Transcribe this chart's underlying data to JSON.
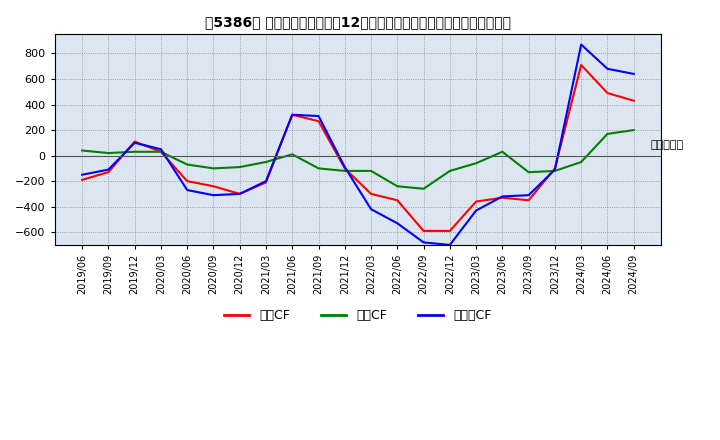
{
  "title": "々5386〆 キャッシュフローの12か月移動合計の対前年同期増減額の推移",
  "ylabel": "（百万円）",
  "ylim": [
    -700,
    950
  ],
  "yticks": [
    -600,
    -400,
    -200,
    0,
    200,
    400,
    600,
    800
  ],
  "dates": [
    "2019/06",
    "2019/09",
    "2019/12",
    "2020/03",
    "2020/06",
    "2020/09",
    "2020/12",
    "2021/03",
    "2021/06",
    "2021/09",
    "2021/12",
    "2022/03",
    "2022/06",
    "2022/09",
    "2022/12",
    "2023/03",
    "2023/06",
    "2023/09",
    "2023/12",
    "2024/03",
    "2024/06",
    "2024/09"
  ],
  "operating_cf": [
    -190,
    -130,
    110,
    30,
    -200,
    -240,
    -300,
    -210,
    320,
    270,
    -100,
    -300,
    -350,
    -590,
    -590,
    -360,
    -330,
    -350,
    -100,
    710,
    490,
    430
  ],
  "investing_cf": [
    40,
    20,
    30,
    30,
    -70,
    -100,
    -90,
    -50,
    10,
    -100,
    -120,
    -120,
    -240,
    -260,
    -120,
    -60,
    30,
    -130,
    -120,
    -50,
    170,
    200
  ],
  "free_cf": [
    -150,
    -110,
    100,
    50,
    -270,
    -310,
    -300,
    -200,
    320,
    310,
    -90,
    -420,
    -530,
    -680,
    -700,
    -430,
    -320,
    -310,
    -110,
    870,
    680,
    640
  ],
  "operating_color": "#ff0000",
  "investing_color": "#008000",
  "free_color": "#0000ff",
  "bg_color": "#dce6f1",
  "grid_color": "#aaaaaa",
  "legend_labels": [
    "営業CF",
    "投賄CF",
    "フリーCF"
  ]
}
